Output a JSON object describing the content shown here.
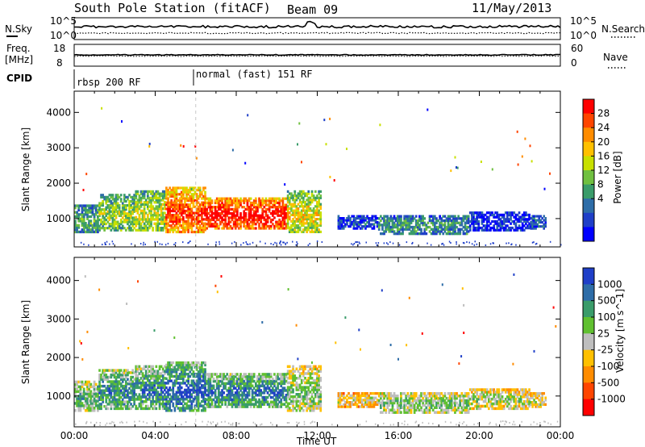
{
  "header": {
    "station": "South Pole Station (fitACF)",
    "beam": "Beam 09",
    "date": "11/May/2013"
  },
  "top_panels": {
    "nsky_label": "N.Sky",
    "nsearch_label": "N.Search",
    "freq_label": "Freq.",
    "freq_unit": "[MHz]",
    "nave_label": "Nave",
    "cpid_label": "CPID",
    "nsky_ticks": [
      "10^5",
      "10^0"
    ],
    "nsearch_ticks": [
      "10^5",
      "10^0"
    ],
    "freq_ticks": [
      "18",
      "8"
    ],
    "nave_ticks": [
      "60",
      "0"
    ],
    "cpid_modes": [
      {
        "label": "rbsp 200 RF",
        "start": 0
      },
      {
        "label": "normal (fast) 151 RF",
        "start": 6.0
      }
    ]
  },
  "chart_data": [
    {
      "type": "heatmap",
      "name": "power",
      "ylabel": "Slant Range [km]",
      "xlabel": "",
      "y_ticks": [
        1000,
        2000,
        3000,
        4000
      ],
      "ylim": [
        200,
        4600
      ],
      "xlim": [
        0,
        24
      ],
      "colorbar": {
        "label": "Power [dB]",
        "ticks": [
          "28",
          "24",
          "20",
          "16",
          "12",
          "8",
          "4"
        ],
        "colors": [
          "#ff0000",
          "#ff4500",
          "#ff8c00",
          "#ffc000",
          "#c8e000",
          "#70c040",
          "#3a9c6a",
          "#2e6da8",
          "#1f3fc8",
          "#0000ff"
        ]
      },
      "regions": [
        {
          "t0": 0.0,
          "t1": 1.2,
          "r0": 600,
          "r1": 1400,
          "level": 0.35
        },
        {
          "t0": 1.2,
          "t1": 3.0,
          "r0": 650,
          "r1": 1700,
          "level": 0.45
        },
        {
          "t0": 3.0,
          "t1": 4.5,
          "r0": 650,
          "r1": 1800,
          "level": 0.5
        },
        {
          "t0": 4.5,
          "t1": 6.5,
          "r0": 600,
          "r1": 1900,
          "level": 0.8
        },
        {
          "t0": 6.5,
          "t1": 10.5,
          "r0": 700,
          "r1": 1600,
          "level": 0.9
        },
        {
          "t0": 10.5,
          "t1": 12.2,
          "r0": 600,
          "r1": 1800,
          "level": 0.55
        },
        {
          "t0": 13.0,
          "t1": 15.0,
          "r0": 700,
          "r1": 1100,
          "level": 0.15
        },
        {
          "t0": 15.0,
          "t1": 19.5,
          "r0": 550,
          "r1": 1100,
          "level": 0.3
        },
        {
          "t0": 19.5,
          "t1": 22.5,
          "r0": 650,
          "r1": 1200,
          "level": 0.12
        },
        {
          "t0": 22.5,
          "t1": 23.3,
          "r0": 700,
          "r1": 1100,
          "level": 0.2
        }
      ]
    },
    {
      "type": "heatmap",
      "name": "velocity",
      "ylabel": "Slant Range [km]",
      "xlabel": "Time UT",
      "y_ticks": [
        1000,
        2000,
        3000,
        4000
      ],
      "ylim": [
        200,
        4600
      ],
      "xlim": [
        0,
        24
      ],
      "x_ticks": [
        "00:00",
        "04:00",
        "08:00",
        "12:00",
        "16:00",
        "20:00",
        "00:00"
      ],
      "colorbar": {
        "label": "Velocity [m s^-1]",
        "ticks": [
          "1000",
          "500",
          "100",
          "25",
          "-25",
          "-100",
          "-500",
          "-1000"
        ],
        "colors": [
          "#1f3fc8",
          "#2e6da8",
          "#3a9c6a",
          "#60c030",
          "#bebebe",
          "#ffc000",
          "#ff8c00",
          "#ff4500",
          "#ff0000"
        ]
      },
      "regions": [
        {
          "t0": 0.0,
          "t1": 1.2,
          "r0": 600,
          "r1": 1400,
          "level": 0.6
        },
        {
          "t0": 1.2,
          "t1": 3.0,
          "r0": 650,
          "r1": 1700,
          "level": 0.7
        },
        {
          "t0": 3.0,
          "t1": 4.5,
          "r0": 650,
          "r1": 1800,
          "level": 0.72
        },
        {
          "t0": 4.5,
          "t1": 6.5,
          "r0": 600,
          "r1": 1900,
          "level": 0.8
        },
        {
          "t0": 6.5,
          "t1": 10.5,
          "r0": 700,
          "r1": 1600,
          "level": 0.75
        },
        {
          "t0": 10.5,
          "t1": 12.2,
          "r0": 600,
          "r1": 1800,
          "level": 0.55
        },
        {
          "t0": 13.0,
          "t1": 15.0,
          "r0": 700,
          "r1": 1100,
          "level": 0.4
        },
        {
          "t0": 15.0,
          "t1": 19.5,
          "r0": 550,
          "r1": 1100,
          "level": 0.55
        },
        {
          "t0": 19.5,
          "t1": 22.5,
          "r0": 650,
          "r1": 1200,
          "level": 0.5
        },
        {
          "t0": 22.5,
          "t1": 23.3,
          "r0": 700,
          "r1": 1100,
          "level": 0.45
        }
      ]
    }
  ]
}
